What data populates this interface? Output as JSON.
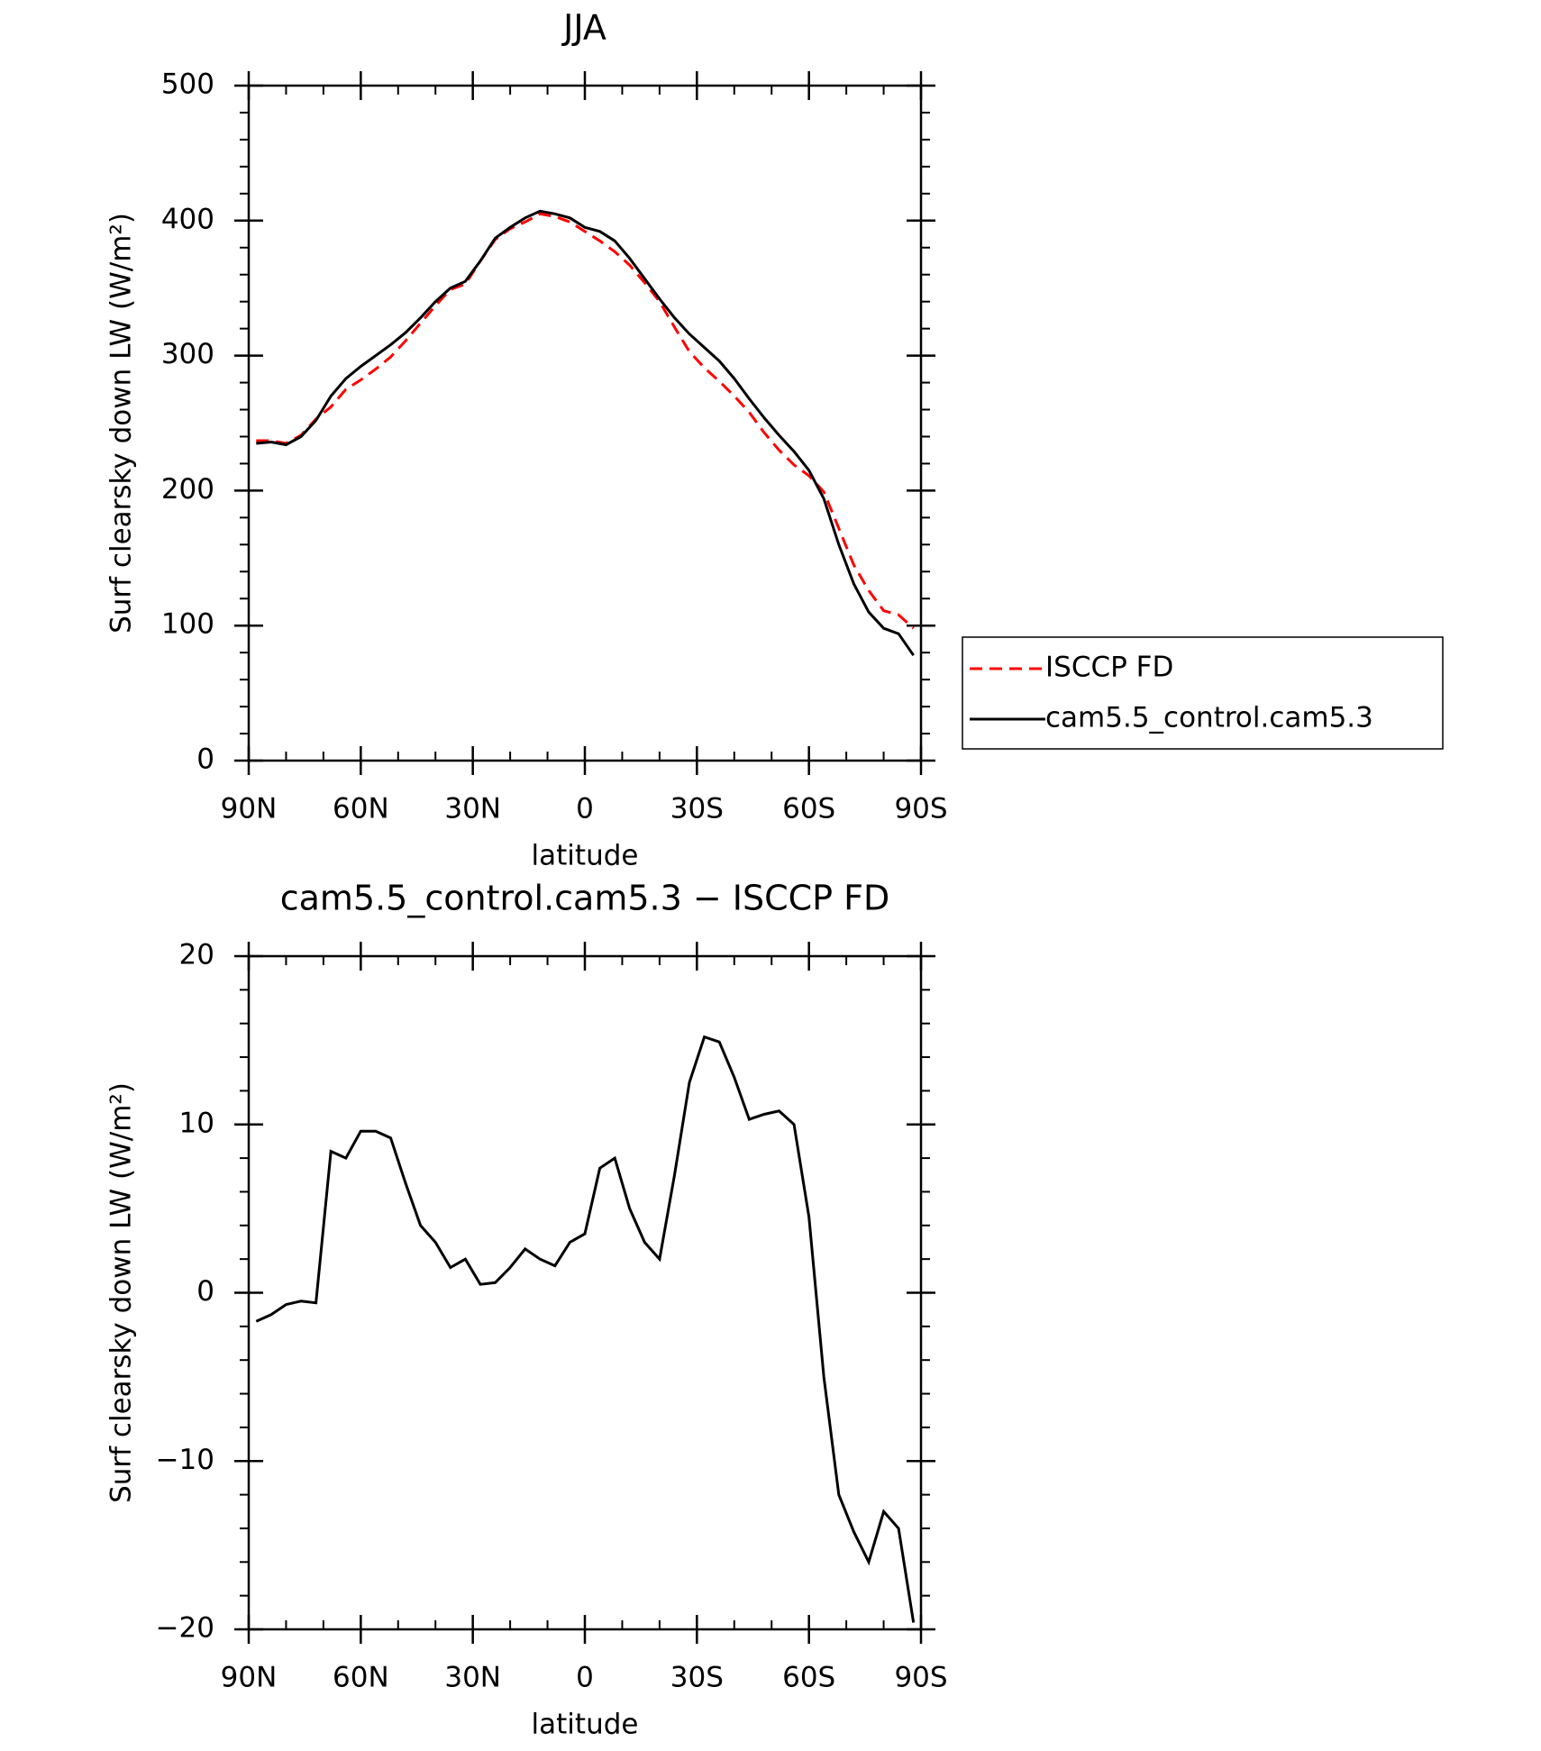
{
  "chart_data": [
    {
      "type": "line",
      "title": "JJA",
      "xlabel": "latitude",
      "ylabel": "Surf clearsky down LW (W/m²)",
      "x": [
        88,
        84,
        80,
        76,
        72,
        68,
        64,
        60,
        56,
        52,
        48,
        44,
        40,
        36,
        32,
        28,
        24,
        20,
        16,
        12,
        8,
        4,
        0,
        -4,
        -8,
        -12,
        -16,
        -20,
        -24,
        -28,
        -32,
        -36,
        -40,
        -44,
        -48,
        -52,
        -56,
        -60,
        -64,
        -68,
        -72,
        -76,
        -80,
        -84,
        -88
      ],
      "series": [
        {
          "name": "ISCCP FD",
          "color": "#ff0000",
          "dashed": true,
          "values": [
            237,
            237,
            235,
            241,
            253,
            262,
            275,
            282,
            290,
            299,
            311,
            324,
            337,
            349,
            353,
            370,
            386,
            394,
            399,
            405,
            403,
            399,
            392,
            385,
            377,
            367,
            354,
            340,
            321,
            303,
            291,
            281,
            270,
            258,
            243,
            230,
            219,
            211,
            199,
            172,
            145,
            126,
            111,
            108,
            98
          ]
        },
        {
          "name": "cam5.5_control.cam5.3",
          "color": "#000000",
          "dashed": false,
          "values": [
            235,
            236,
            234,
            240,
            252,
            270,
            283,
            292,
            300,
            308,
            317,
            328,
            340,
            350,
            355,
            370,
            387,
            395,
            402,
            407,
            405,
            402,
            395,
            392,
            385,
            372,
            357,
            342,
            328,
            316,
            306,
            296,
            283,
            268,
            254,
            241,
            229,
            215,
            194,
            160,
            131,
            110,
            98,
            94,
            78
          ]
        }
      ],
      "xlim": [
        90,
        -90
      ],
      "xticks": [
        {
          "value": 90,
          "label": "90N"
        },
        {
          "value": 60,
          "label": "60N"
        },
        {
          "value": 30,
          "label": "30N"
        },
        0,
        {
          "value": -30,
          "label": "30S"
        },
        {
          "value": -60,
          "label": "60S"
        },
        {
          "value": -90,
          "label": "90S"
        }
      ],
      "ylim": [
        0,
        500
      ],
      "yticks": [
        0,
        100,
        200,
        300,
        400,
        500
      ],
      "x_minor_per_major": 3,
      "y_minor_per_major": 5,
      "legend": "right"
    },
    {
      "type": "line",
      "title": "cam5.5_control.cam5.3 − ISCCP FD",
      "xlabel": "latitude",
      "ylabel": "Surf clearsky down LW (W/m²)",
      "x": [
        88,
        84,
        80,
        76,
        72,
        68,
        64,
        60,
        56,
        52,
        48,
        44,
        40,
        36,
        32,
        28,
        24,
        20,
        16,
        12,
        8,
        4,
        0,
        -4,
        -8,
        -12,
        -16,
        -20,
        -24,
        -28,
        -32,
        -36,
        -40,
        -44,
        -48,
        -52,
        -56,
        -60,
        -64,
        -68,
        -72,
        -76,
        -80,
        -84,
        -88
      ],
      "series": [
        {
          "color": "#000000",
          "dashed": false,
          "values": [
            -1.7,
            -1.3,
            -0.7,
            -0.5,
            -0.6,
            8.4,
            8.0,
            9.6,
            9.6,
            9.2,
            6.5,
            4.0,
            3.0,
            1.5,
            2.0,
            0.5,
            0.6,
            1.5,
            2.6,
            2.0,
            1.6,
            3.0,
            3.5,
            7.4,
            8.0,
            5.0,
            3.0,
            2.0,
            7.0,
            12.5,
            15.2,
            14.9,
            12.8,
            10.3,
            10.6,
            10.8,
            10.0,
            4.5,
            -5,
            -12,
            -14.2,
            -16.0,
            -13.0,
            -14.0,
            -19.6
          ]
        }
      ],
      "xlim": [
        90,
        -90
      ],
      "xticks": [
        {
          "value": 90,
          "label": "90N"
        },
        {
          "value": 60,
          "label": "60N"
        },
        {
          "value": 30,
          "label": "30N"
        },
        0,
        {
          "value": -30,
          "label": "30S"
        },
        {
          "value": -60,
          "label": "60S"
        },
        {
          "value": -90,
          "label": "90S"
        }
      ],
      "ylim": [
        -20,
        20
      ],
      "yticks": [
        {
          "value": -20,
          "label": "−20"
        },
        {
          "value": -10,
          "label": "−10"
        },
        0,
        10,
        20
      ],
      "x_minor_per_major": 3,
      "y_minor_per_major": 5
    }
  ]
}
